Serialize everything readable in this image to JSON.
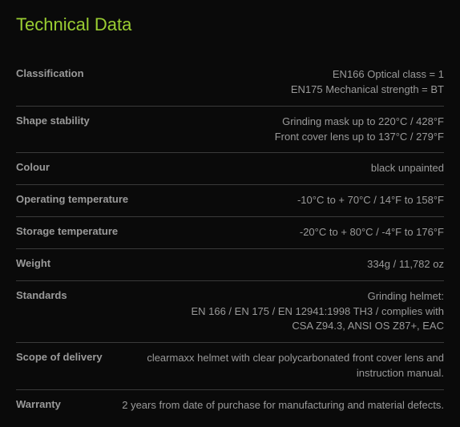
{
  "title": "Technical Data",
  "rows": [
    {
      "label": "Classification",
      "value": "EN166 Optical class = 1\nEN175 Mechanical strength = BT"
    },
    {
      "label": "Shape stability",
      "value": "Grinding mask up to 220°C / 428°F\nFront cover lens up to 137°C / 279°F"
    },
    {
      "label": "Colour",
      "value": "black unpainted"
    },
    {
      "label": "Operating temperature",
      "value": "-10°C to + 70°C / 14°F to 158°F"
    },
    {
      "label": "Storage temperature",
      "value": "-20°C to + 80°C / -4°F to 176°F"
    },
    {
      "label": "Weight",
      "value": "334g / 11,782 oz"
    },
    {
      "label": "Standards",
      "value": "Grinding helmet:\nEN 166 / EN 175 / EN 12941:1998 TH3 / complies with\nCSA Z94.3, ANSI OS Z87+, EAC"
    },
    {
      "label": "Scope of delivery",
      "value": "clearmaxx helmet with clear polycarbonated front cover lens and instruction manual."
    },
    {
      "label": "Warranty",
      "value": "2 years from date of purchase for manufacturing and material defects."
    }
  ],
  "colors": {
    "background": "#0a0a0a",
    "text": "#9a9a9a",
    "title": "#9acd32",
    "divider": "#3a3a3a"
  }
}
